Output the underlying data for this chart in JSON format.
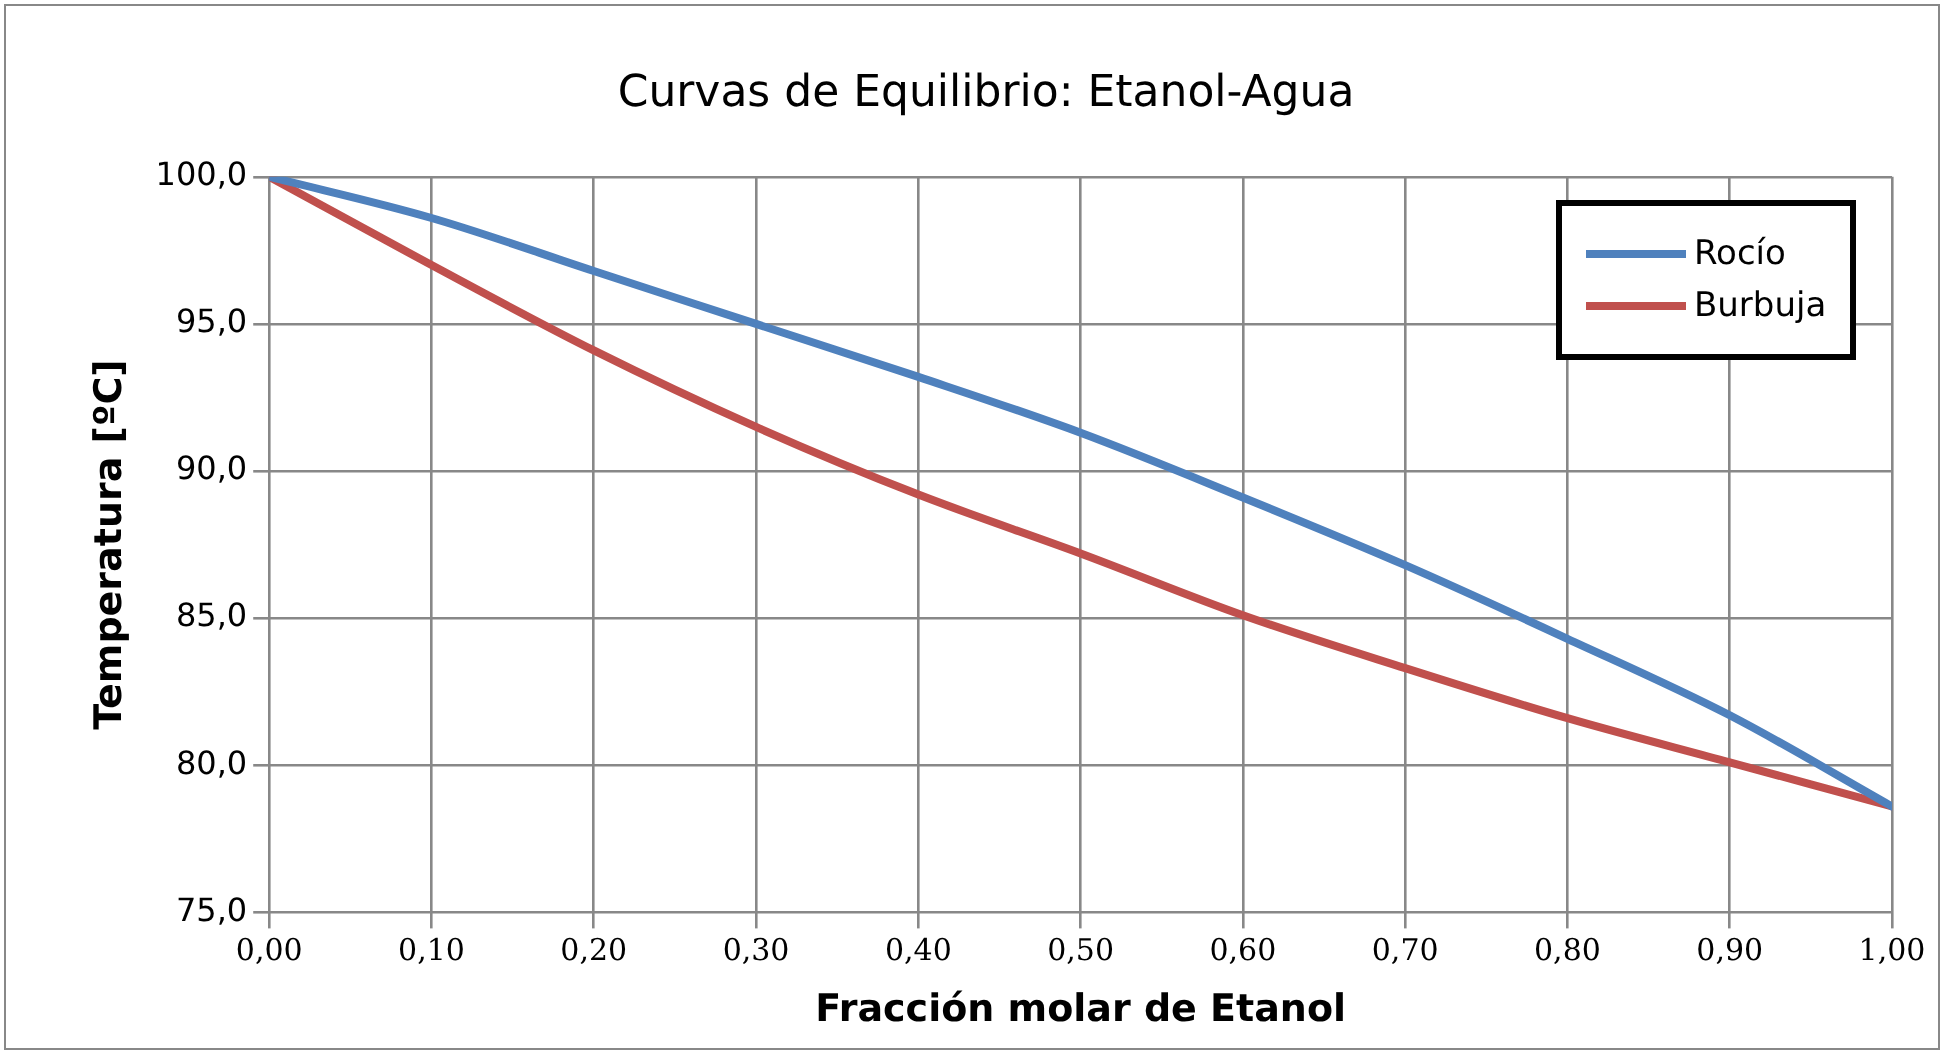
{
  "chart_data": {
    "type": "line",
    "title": "Curvas de Equilibrio: Etanol-Agua",
    "xlabel": "Fracción molar de Etanol",
    "ylabel": "Temperatura [ºC]",
    "x": [
      0,
      0.1,
      0.2,
      0.3,
      0.4,
      0.5,
      0.6,
      0.7,
      0.8,
      0.9,
      1.0
    ],
    "series": [
      {
        "name": "Rocío",
        "color": "#4f81bd",
        "values": [
          100,
          98.6,
          96.8,
          95.0,
          93.2,
          91.3,
          89.1,
          86.8,
          84.3,
          81.7,
          78.6
        ]
      },
      {
        "name": "Burbuja",
        "color": "#c0504d",
        "values": [
          100,
          97.0,
          94.1,
          91.5,
          89.2,
          87.2,
          85.1,
          83.3,
          81.6,
          80.1,
          78.6
        ]
      }
    ],
    "xlim": [
      0,
      1
    ],
    "xticks": [
      {
        "value": 0,
        "label": "0,00"
      },
      {
        "value": 0.1,
        "label": "0,10"
      },
      {
        "value": 0.2,
        "label": "0,20"
      },
      {
        "value": 0.3,
        "label": "0,30"
      },
      {
        "value": 0.4,
        "label": "0,40"
      },
      {
        "value": 0.5,
        "label": "0,50"
      },
      {
        "value": 0.6,
        "label": "0,60"
      },
      {
        "value": 0.7,
        "label": "0,70"
      },
      {
        "value": 0.8,
        "label": "0,80"
      },
      {
        "value": 0.9,
        "label": "0,90"
      },
      {
        "value": 1,
        "label": "1,00"
      }
    ],
    "ylim": [
      75,
      100
    ],
    "yticks": [
      {
        "value": 75,
        "label": "75,0"
      },
      {
        "value": 80,
        "label": "80,0"
      },
      {
        "value": 85,
        "label": "85,0"
      },
      {
        "value": 90,
        "label": "90,0"
      },
      {
        "value": 95,
        "label": "95,0"
      },
      {
        "value": 100,
        "label": "100,0"
      }
    ],
    "grid": true,
    "legend": "top right",
    "marker": "none",
    "line_style": "solid"
  }
}
